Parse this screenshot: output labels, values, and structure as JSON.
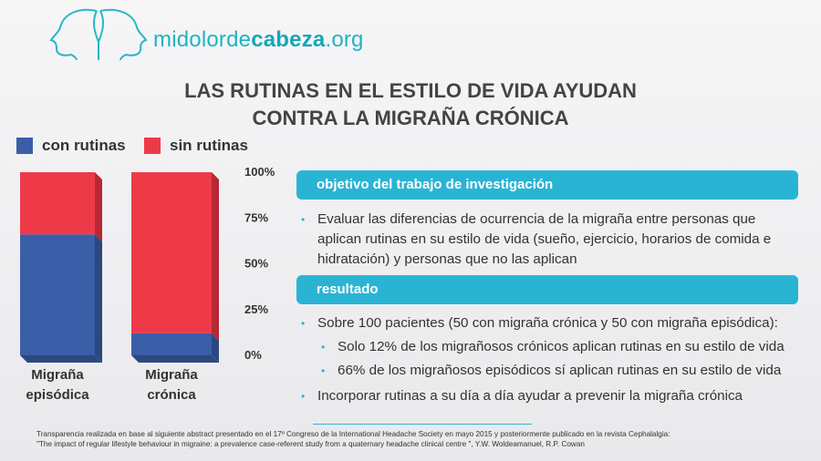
{
  "site": {
    "prefix": "midolorde",
    "bold": "cabeza",
    "suffix": ".org"
  },
  "title": {
    "line1": "LAS RUTINAS EN EL ESTILO DE VIDA  AYUDAN",
    "line2": "CONTRA LA MIGRAÑA CRÓNICA"
  },
  "colors": {
    "accent": "#2ab4d4",
    "con": "#3a5ea8",
    "sin": "#ee3a48"
  },
  "chart_data": {
    "type": "bar",
    "stacked": true,
    "categories": [
      [
        "Migraña",
        "episódica"
      ],
      [
        "Migraña",
        "crónica"
      ]
    ],
    "series": [
      {
        "name": "con rutinas",
        "values": [
          66,
          12
        ]
      },
      {
        "name": "sin rutinas",
        "values": [
          34,
          88
        ]
      }
    ],
    "ylim": [
      0,
      100
    ],
    "ticks": [
      "0%",
      "25%",
      "50%",
      "75%",
      "100%"
    ]
  },
  "objective": {
    "header": "objetivo del trabajo de investigación",
    "lines": [
      "Evaluar las diferencias de ocurrencia de la migraña entre personas que",
      "aplican rutinas en su estilo de vida (sueño, ejercicio, horarios de comida e",
      "hidratación) y personas que no las aplican"
    ]
  },
  "result": {
    "header": "resultado",
    "intro": "Sobre 100 pacientes (50 con migraña crónica y 50 con migraña episódica):",
    "sub1": "Solo 12% de los migrañosos crónicos aplican rutinas en su estilo de vida",
    "sub2": "66% de los migrañosos episódicos sí aplican rutinas en su estilo de vida",
    "conclusion": "Incorporar rutinas a su día a día ayudar a prevenir la migraña crónica"
  },
  "footer": {
    "line1": "Transparencia realizada en base al siguiente abstract presentado en el 17º Congreso de la International Headache Society en mayo 2015 y posteriormente publicado en la revista Cephalalgia:",
    "line2": "\"The impact of regular lifestyle behaviour in migraine: a prevalence case-referent study from a quaternary headache clinical centre \", Y.W. Woldeamanuel, R.P. Cowan"
  }
}
